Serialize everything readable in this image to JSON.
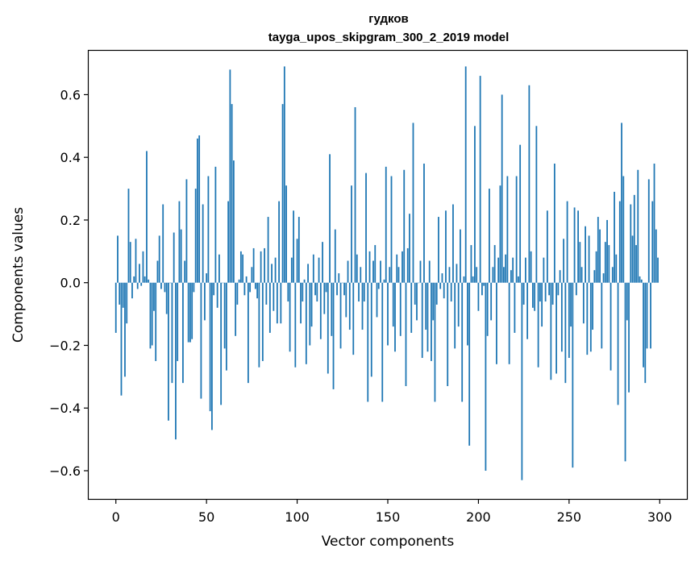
{
  "chart_data": {
    "type": "bar",
    "title": "гудков",
    "subtitle": "tayga_upos_skipgram_300_2_2019 model",
    "xlabel": "Vector components",
    "ylabel": "Components values",
    "xlim": [
      -15,
      315
    ],
    "ylim": [
      -0.69,
      0.74
    ],
    "xticks": [
      0,
      50,
      100,
      150,
      200,
      250,
      300
    ],
    "yticks": [
      -0.6,
      -0.4,
      -0.2,
      0.0,
      0.2,
      0.4,
      0.6
    ],
    "ytick_labels": [
      "−0.6",
      "−0.4",
      "−0.2",
      "0.0",
      "0.2",
      "0.4",
      "0.6"
    ],
    "xtick_labels": [
      "0",
      "50",
      "100",
      "150",
      "200",
      "250",
      "300"
    ],
    "bar_color": "#1f77b4",
    "grid": false,
    "legend": "none",
    "x": "0..299 (vector component index)",
    "values": [
      -0.16,
      0.15,
      -0.07,
      -0.36,
      -0.08,
      -0.3,
      -0.13,
      0.3,
      0.13,
      -0.05,
      0.02,
      0.14,
      -0.02,
      0.06,
      -0.01,
      0.1,
      0.02,
      0.42,
      0.01,
      -0.21,
      -0.2,
      -0.09,
      -0.25,
      0.07,
      0.15,
      -0.02,
      0.25,
      -0.03,
      -0.1,
      -0.44,
      0.0,
      -0.32,
      0.16,
      -0.5,
      -0.25,
      0.26,
      0.17,
      -0.32,
      0.07,
      0.33,
      -0.19,
      -0.19,
      -0.18,
      -0.03,
      0.3,
      0.46,
      0.47,
      -0.37,
      0.25,
      -0.12,
      0.03,
      0.34,
      -0.41,
      -0.47,
      -0.04,
      0.37,
      -0.08,
      0.09,
      -0.39,
      0.0,
      -0.21,
      -0.28,
      0.26,
      0.68,
      0.57,
      0.39,
      -0.17,
      -0.07,
      0.01,
      0.1,
      0.09,
      -0.04,
      0.02,
      -0.32,
      -0.03,
      0.05,
      0.11,
      -0.02,
      -0.05,
      -0.27,
      0.1,
      -0.25,
      0.11,
      -0.07,
      0.21,
      -0.16,
      0.06,
      -0.09,
      0.08,
      -0.13,
      0.26,
      -0.13,
      0.57,
      0.69,
      0.31,
      -0.06,
      -0.22,
      0.08,
      0.23,
      -0.27,
      0.14,
      0.21,
      -0.13,
      -0.06,
      0.01,
      -0.26,
      0.06,
      -0.2,
      -0.14,
      0.09,
      -0.04,
      -0.06,
      0.08,
      -0.18,
      0.13,
      -0.1,
      -0.03,
      -0.29,
      0.41,
      -0.17,
      -0.34,
      0.17,
      -0.04,
      0.03,
      -0.21,
      0.0,
      -0.04,
      -0.11,
      0.07,
      -0.15,
      0.31,
      -0.23,
      0.56,
      0.09,
      -0.06,
      0.05,
      -0.15,
      -0.06,
      0.35,
      -0.38,
      0.1,
      -0.3,
      0.07,
      0.12,
      -0.11,
      -0.02,
      0.07,
      -0.38,
      0.01,
      0.37,
      -0.2,
      0.05,
      0.34,
      -0.14,
      -0.22,
      0.09,
      0.05,
      -0.17,
      0.1,
      0.36,
      -0.33,
      0.11,
      0.22,
      -0.16,
      0.51,
      -0.07,
      -0.12,
      0.0,
      0.07,
      -0.24,
      0.38,
      -0.15,
      -0.22,
      0.07,
      -0.25,
      -0.12,
      -0.38,
      -0.07,
      0.21,
      -0.02,
      0.03,
      -0.05,
      0.23,
      -0.33,
      0.05,
      -0.06,
      0.25,
      -0.21,
      0.06,
      -0.14,
      0.17,
      -0.38,
      0.02,
      0.69,
      -0.2,
      -0.52,
      0.12,
      0.02,
      0.5,
      0.05,
      -0.09,
      0.66,
      -0.04,
      -0.01,
      -0.6,
      -0.17,
      0.3,
      -0.12,
      0.05,
      0.12,
      -0.26,
      0.08,
      0.31,
      0.6,
      0.05,
      0.09,
      0.34,
      -0.26,
      0.04,
      0.08,
      -0.16,
      0.34,
      0.02,
      0.44,
      -0.63,
      -0.07,
      0.08,
      -0.18,
      0.63,
      0.1,
      -0.08,
      -0.09,
      0.5,
      -0.27,
      -0.06,
      -0.14,
      0.08,
      -0.06,
      0.23,
      -0.04,
      -0.31,
      -0.07,
      0.38,
      -0.29,
      -0.04,
      0.04,
      -0.22,
      0.14,
      -0.32,
      0.26,
      -0.24,
      -0.14,
      -0.59,
      0.24,
      -0.04,
      0.23,
      0.13,
      0.05,
      -0.13,
      0.18,
      -0.23,
      0.15,
      -0.22,
      -0.15,
      0.04,
      0.1,
      0.21,
      0.17,
      -0.21,
      0.03,
      0.13,
      0.2,
      0.12,
      -0.28,
      0.05,
      0.29,
      0.09,
      -0.39,
      0.26,
      0.51,
      0.34,
      -0.57,
      -0.12,
      -0.35,
      0.25,
      0.15,
      0.28,
      0.12,
      0.36,
      0.02,
      0.01,
      -0.27,
      -0.32,
      -0.21,
      0.33,
      -0.21,
      0.26,
      0.38,
      0.17,
      0.08
    ]
  }
}
